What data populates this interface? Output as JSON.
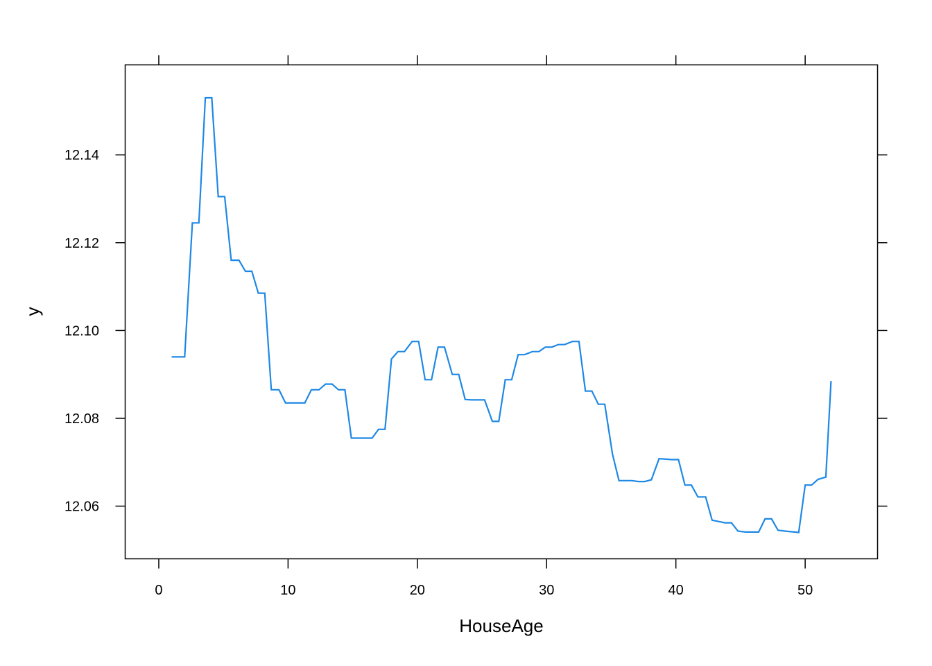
{
  "chart_data": {
    "type": "line",
    "title": "",
    "xlabel": "HouseAge",
    "ylabel": "y",
    "xlim": [
      -2.6,
      55.6
    ],
    "ylim": [
      12.048,
      12.1605
    ],
    "xticks": [
      0,
      10,
      20,
      30,
      40,
      50
    ],
    "yticks": [
      12.06,
      12.08,
      12.1,
      12.12,
      12.14
    ],
    "ytick_labels": [
      "12.06",
      "12.08",
      "12.10",
      "12.12",
      "12.14"
    ],
    "grid": false,
    "line_color": "#1e88e5",
    "series": [
      {
        "x": [
          1,
          2,
          2.6,
          3.1,
          3.6,
          4.1,
          4.6,
          5.1,
          5.6,
          6.2,
          6.7,
          7.2,
          7.7,
          8.2,
          8.7,
          9.3,
          9.8,
          10.3,
          11.3,
          11.8,
          12.4,
          12.9,
          13.4,
          13.9,
          14.4,
          14.9,
          15.5,
          16.5,
          17,
          17.5,
          18,
          18.5,
          19,
          19.6,
          20.1,
          20.6,
          21.1,
          21.6,
          22.1,
          22.7,
          23.2,
          23.7,
          24.2,
          24.7,
          25.2,
          25.8,
          26.3,
          26.8,
          27.3,
          27.8,
          28.3,
          28.9,
          29.4,
          29.9,
          30.4,
          30.9,
          31.4,
          32,
          32.5,
          33,
          33.5,
          34,
          34.5,
          35.1,
          35.6,
          36.6,
          37.1,
          37.6,
          38.1,
          38.7,
          39.7,
          40.2,
          40.7,
          41.2,
          41.7,
          42.3,
          42.8,
          43.3,
          43.8,
          44.3,
          44.8,
          45.4,
          46.4,
          46.9,
          47.4,
          47.9,
          48.5,
          49.5,
          50,
          50.5,
          51,
          51.6,
          52
        ],
        "values": [
          12.094,
          12.094,
          12.1245,
          12.1245,
          12.153,
          12.153,
          12.1305,
          12.1305,
          12.116,
          12.116,
          12.1135,
          12.1135,
          12.1085,
          12.1085,
          12.0865,
          12.0865,
          12.0835,
          12.0835,
          12.0835,
          12.0865,
          12.0865,
          12.0878,
          12.0878,
          12.0865,
          12.0865,
          12.0755,
          12.0755,
          12.0755,
          12.0775,
          12.0775,
          12.0935,
          12.0952,
          12.0952,
          12.0975,
          12.0975,
          12.0888,
          12.0888,
          12.0962,
          12.0962,
          12.09,
          12.09,
          12.0843,
          12.0842,
          12.0842,
          12.0842,
          12.0793,
          12.0793,
          12.0888,
          12.0888,
          12.0945,
          12.0945,
          12.0952,
          12.0952,
          12.0962,
          12.0962,
          12.0968,
          12.0968,
          12.0975,
          12.0975,
          12.0862,
          12.0862,
          12.0832,
          12.0832,
          12.0718,
          12.0658,
          12.0658,
          12.0656,
          12.0656,
          12.066,
          12.0708,
          12.0706,
          12.0706,
          12.0648,
          12.0648,
          12.0621,
          12.0621,
          12.0568,
          12.0565,
          12.0562,
          12.0562,
          12.0543,
          12.0541,
          12.0541,
          12.0571,
          12.0571,
          12.0545,
          12.0543,
          12.054,
          12.0648,
          12.0648,
          12.0661,
          12.0666,
          12.0885
        ]
      }
    ]
  }
}
